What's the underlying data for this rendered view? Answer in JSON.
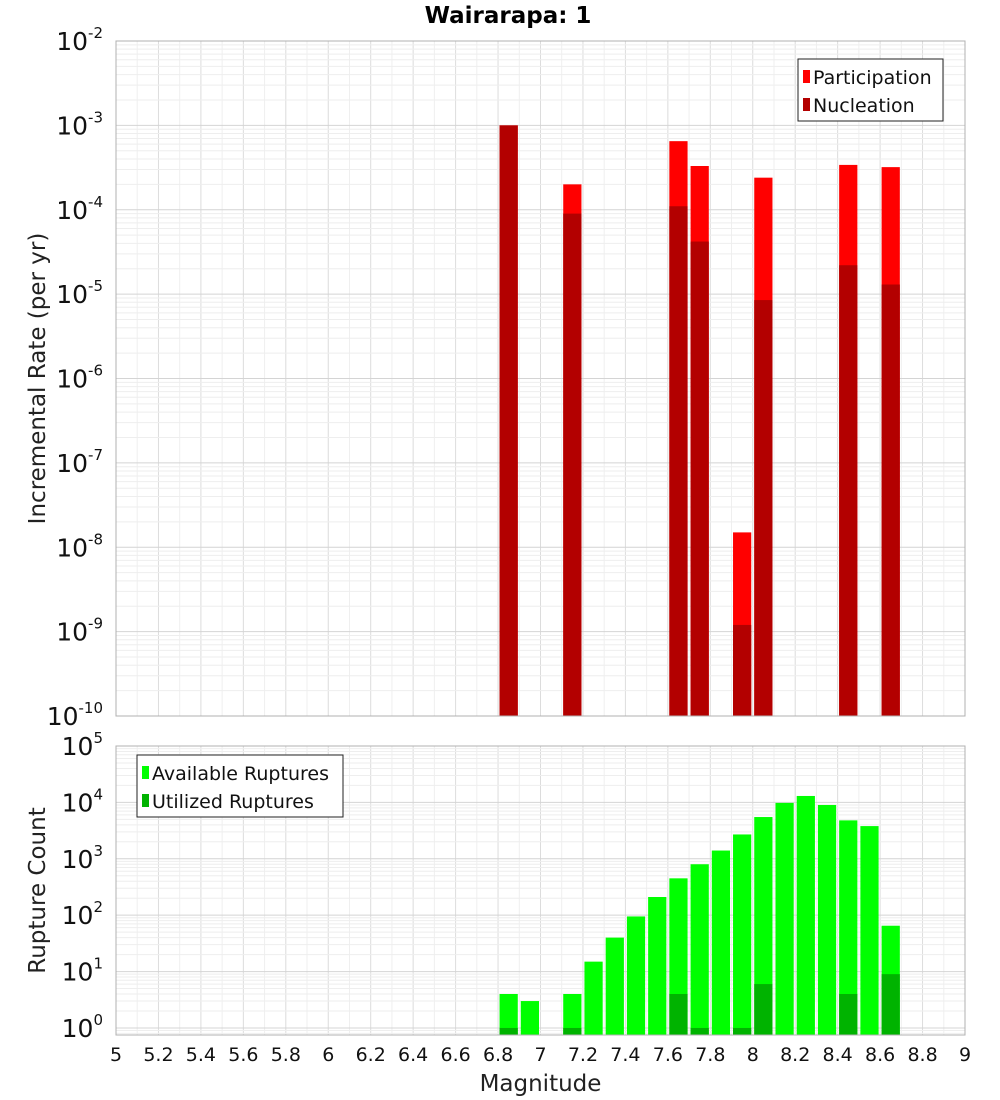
{
  "title": "Wairarapa: 1",
  "chart_data": [
    {
      "type": "bar",
      "panel": "top",
      "ylabel": "Incremental Rate (per yr)",
      "xlim": [
        5,
        9
      ],
      "ylim": [
        1e-10,
        0.01
      ],
      "y_scale": "log",
      "grid": true,
      "y_tick_exponents": [
        "-10",
        "-9",
        "-8",
        "-7",
        "-6",
        "-5",
        "-4",
        "-3",
        "-2"
      ],
      "legend_placement": "top-right",
      "overlay": true,
      "bin_width": 0.1,
      "x": [
        6.85,
        7.15,
        7.65,
        7.75,
        7.95,
        8.05,
        8.45,
        8.65
      ],
      "series": [
        {
          "name": "Participation",
          "color": "#ff0000",
          "values": [
            0.001,
            0.0002,
            0.00065,
            0.00033,
            1.5e-08,
            0.00024,
            0.00034,
            0.00032
          ]
        },
        {
          "name": "Nucleation",
          "color": "#b30000",
          "values": [
            0.001,
            9e-05,
            0.00011,
            4.2e-05,
            1.2e-09,
            8.5e-06,
            2.2e-05,
            1.3e-05
          ]
        }
      ]
    },
    {
      "type": "bar",
      "panel": "bottom",
      "xlabel": "Magnitude",
      "ylabel": "Rupture Count",
      "xlim": [
        5,
        9
      ],
      "ylim": [
        0.75,
        100000.0
      ],
      "y_scale": "log",
      "grid": true,
      "y_tick_exponents": [
        "0",
        "1",
        "2",
        "3",
        "4",
        "5"
      ],
      "x_tick_labels": [
        "5",
        "5.2",
        "5.4",
        "5.6",
        "5.8",
        "6",
        "6.2",
        "6.4",
        "6.6",
        "6.8",
        "7",
        "7.2",
        "7.4",
        "7.6",
        "7.8",
        "8",
        "8.2",
        "8.4",
        "8.6",
        "8.8",
        "9"
      ],
      "legend_placement": "top-left",
      "overlay": true,
      "bin_width": 0.1,
      "x": [
        6.85,
        6.95,
        7.15,
        7.25,
        7.35,
        7.45,
        7.55,
        7.65,
        7.75,
        7.85,
        7.95,
        8.05,
        8.15,
        8.25,
        8.35,
        8.45,
        8.55,
        8.65
      ],
      "series": [
        {
          "name": "Available Ruptures",
          "color": "#00ff00",
          "values": [
            4,
            3,
            4,
            15,
            40,
            95,
            210,
            450,
            800,
            1400,
            2700,
            5500,
            9800,
            13000,
            9000,
            4800,
            3800,
            65
          ]
        },
        {
          "name": "Utilized Ruptures",
          "color": "#00b300",
          "values": [
            1,
            0,
            1,
            0,
            0,
            0,
            0,
            4,
            1,
            0,
            1,
            6,
            0,
            0,
            0,
            4,
            0,
            9
          ]
        }
      ]
    }
  ]
}
